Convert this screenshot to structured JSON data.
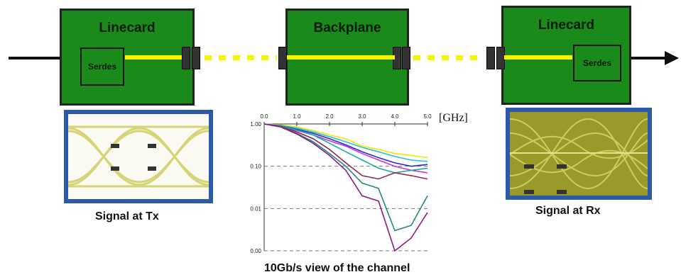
{
  "left_linecard": {
    "title": "Linecard",
    "serdes": "Serdes"
  },
  "backplane": {
    "title": "Backplane"
  },
  "right_linecard": {
    "title": "Linecard",
    "serdes": "Serdes"
  },
  "captions": {
    "tx": "Signal at Tx",
    "rx": "Signal at Rx",
    "channel": "10Gb/s view of the channel"
  },
  "chart_data": {
    "type": "line",
    "x_unit_label": "[GHz]",
    "x_ticks": [
      "0.0",
      "1.0",
      "2.0",
      "3.0",
      "4.0",
      "5.0"
    ],
    "y_ticks": [
      "1.00",
      "0.10",
      "0.01",
      "0.00"
    ],
    "xlim": [
      0,
      5
    ],
    "ylim_log10": [
      -3,
      0
    ],
    "grid": "dashed-horizontal",
    "series": [
      {
        "color": "#f2e600",
        "x": [
          0,
          0.5,
          1,
          1.5,
          2,
          2.5,
          3,
          3.5,
          4,
          4.5,
          5
        ],
        "y": [
          1.0,
          0.95,
          0.85,
          0.7,
          0.55,
          0.45,
          0.3,
          0.25,
          0.2,
          0.18,
          0.16
        ]
      },
      {
        "color": "#27c6c6",
        "x": [
          0,
          0.5,
          1,
          1.5,
          2,
          2.5,
          3,
          3.5,
          4,
          4.5,
          5
        ],
        "y": [
          1.0,
          0.92,
          0.8,
          0.65,
          0.5,
          0.38,
          0.28,
          0.22,
          0.17,
          0.14,
          0.13
        ]
      },
      {
        "color": "#2a2ad8",
        "x": [
          0,
          0.5,
          1,
          1.5,
          2,
          2.5,
          3,
          3.5,
          4,
          4.5,
          5
        ],
        "y": [
          1.0,
          0.9,
          0.75,
          0.6,
          0.45,
          0.32,
          0.22,
          0.16,
          0.12,
          0.1,
          0.11
        ]
      },
      {
        "color": "#cc33cc",
        "x": [
          0,
          0.5,
          1,
          1.5,
          2,
          2.5,
          3,
          3.5,
          4,
          4.5,
          5
        ],
        "y": [
          1.0,
          0.88,
          0.7,
          0.55,
          0.4,
          0.3,
          0.2,
          0.14,
          0.1,
          0.08,
          0.07
        ]
      },
      {
        "color": "#1aa8a8",
        "x": [
          0,
          0.5,
          1,
          1.5,
          2,
          2.5,
          3,
          3.5,
          4,
          4.5,
          5
        ],
        "y": [
          1.0,
          0.9,
          0.72,
          0.55,
          0.35,
          0.22,
          0.14,
          0.09,
          0.07,
          0.08,
          0.09
        ]
      },
      {
        "color": "#8b2a4a",
        "x": [
          0,
          0.5,
          1,
          1.5,
          2,
          2.5,
          3,
          3.5,
          4,
          4.5,
          5
        ],
        "y": [
          1.0,
          0.88,
          0.65,
          0.45,
          0.25,
          0.12,
          0.06,
          0.05,
          0.07,
          0.06,
          0.05
        ]
      },
      {
        "color": "#208a80",
        "x": [
          0,
          0.5,
          1,
          1.5,
          2,
          2.5,
          3,
          3.5,
          4,
          4.5,
          5
        ],
        "y": [
          1.0,
          0.86,
          0.6,
          0.38,
          0.2,
          0.1,
          0.04,
          0.03,
          0.003,
          0.004,
          0.02
        ]
      },
      {
        "color": "#8a1a8a",
        "x": [
          0,
          0.5,
          1,
          1.5,
          2,
          2.5,
          3,
          3.5,
          4,
          4.5,
          5
        ],
        "y": [
          1.0,
          0.85,
          0.58,
          0.35,
          0.18,
          0.08,
          0.02,
          0.015,
          0.001,
          0.002,
          0.008
        ]
      }
    ]
  }
}
